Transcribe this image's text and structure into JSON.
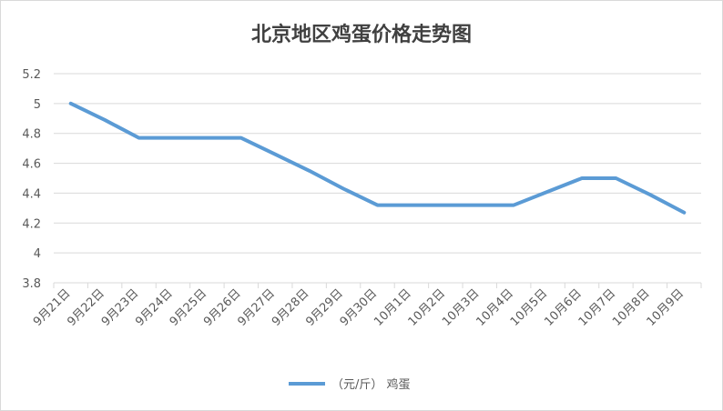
{
  "chart_data": {
    "type": "line",
    "title": "北京地区鸡蛋价格走势图",
    "xlabel": "",
    "ylabel": "",
    "categories": [
      "9月21日",
      "9月22日",
      "9月23日",
      "9月24日",
      "9月25日",
      "9月26日",
      "9月27日",
      "9月28日",
      "9月29日",
      "9月30日",
      "10月1日",
      "10月2日",
      "10月3日",
      "10月4日",
      "10月5日",
      "10月6日",
      "10月7日",
      "10月8日",
      "10月9日"
    ],
    "series": [
      {
        "name": "（元/斤） 鸡蛋",
        "values": [
          5.0,
          4.89,
          4.77,
          4.77,
          4.77,
          4.77,
          4.66,
          4.55,
          4.43,
          4.32,
          4.32,
          4.32,
          4.32,
          4.32,
          4.41,
          4.5,
          4.5,
          4.39,
          4.27
        ],
        "color": "#5b9bd5"
      }
    ],
    "ylim": [
      3.8,
      5.2
    ],
    "yticks": [
      "3.8",
      "4",
      "4.2",
      "4.4",
      "4.6",
      "4.8",
      "5",
      "5.2"
    ],
    "grid": true,
    "legend": "bottom"
  }
}
